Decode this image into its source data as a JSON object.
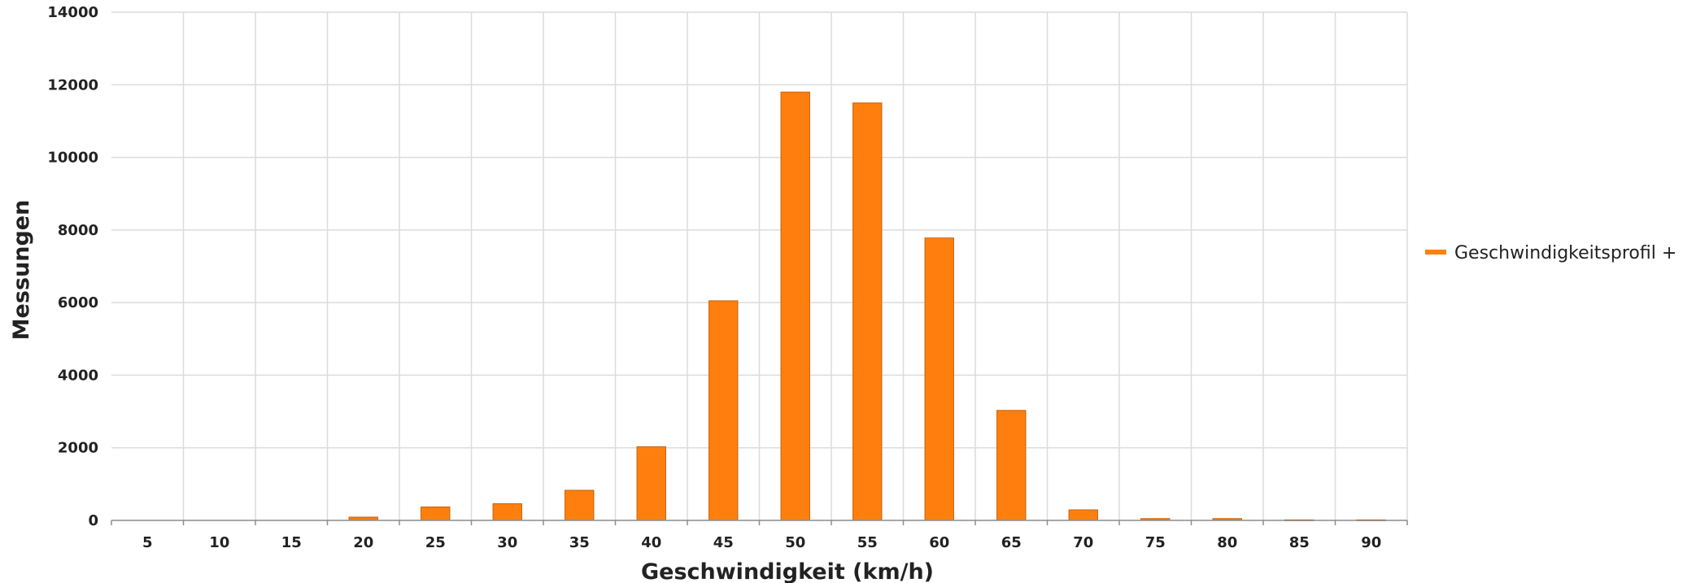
{
  "chart_data": {
    "type": "bar",
    "xlabel": "Geschwindigkeit (km/h)",
    "ylabel": "Messungen",
    "categories": [
      "5",
      "10",
      "15",
      "20",
      "25",
      "30",
      "35",
      "40",
      "45",
      "50",
      "55",
      "60",
      "65",
      "70",
      "75",
      "80",
      "85",
      "90"
    ],
    "series": [
      {
        "name": "Geschwindigkeitsprofil +",
        "values": [
          0,
          0,
          0,
          90,
          370,
          460,
          830,
          2030,
          6050,
          11800,
          11500,
          7780,
          3030,
          290,
          50,
          50,
          15,
          15
        ]
      }
    ],
    "ylim": [
      0,
      14000
    ],
    "yticks": [
      "0",
      "2000",
      "4000",
      "6000",
      "8000",
      "10000",
      "12000",
      "14000"
    ],
    "grid": true,
    "legend_position": "right",
    "colors": {
      "bar_fill": "#ff7f0e",
      "bar_stroke": "#c8620a"
    }
  }
}
